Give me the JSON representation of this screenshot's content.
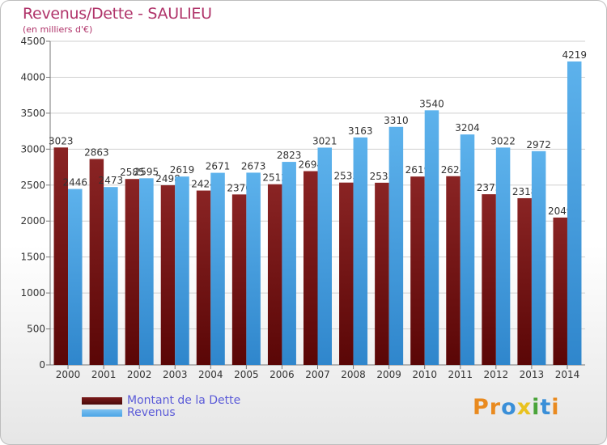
{
  "header": {
    "title": "Revenus/Dette - SAULIEU",
    "subtitle": "(en milliers d'€)"
  },
  "colors": {
    "dette": "#7a1a1a",
    "revenus": "#4aa4e6",
    "title": "#b0346a",
    "legend_text": "#5b5bd8"
  },
  "legend": {
    "dette_label": "Montant de la Dette",
    "revenus_label": "Revenus"
  },
  "logo": {
    "text": "Proxiti"
  },
  "chart_data": {
    "type": "bar",
    "categories": [
      "2000",
      "2001",
      "2002",
      "2003",
      "2004",
      "2005",
      "2006",
      "2007",
      "2008",
      "2009",
      "2010",
      "2011",
      "2012",
      "2013",
      "2014"
    ],
    "series": [
      {
        "name": "Montant de la Dette",
        "values": [
          3023,
          2863,
          2585,
          2498,
          2424,
          2370,
          2512,
          2694,
          2535,
          2533,
          2619,
          2624,
          2373,
          2318,
          2049
        ]
      },
      {
        "name": "Revenus",
        "values": [
          2446,
          2473,
          2595,
          2619,
          2671,
          2673,
          2823,
          3021,
          3163,
          3310,
          3540,
          3204,
          3022,
          2972,
          4219
        ]
      }
    ],
    "ylim": [
      0,
      4500
    ],
    "yticks": [
      0,
      500,
      1000,
      1500,
      2000,
      2500,
      3000,
      3500,
      4000,
      4500
    ],
    "grid": true,
    "legend_position": "bottom-left"
  }
}
